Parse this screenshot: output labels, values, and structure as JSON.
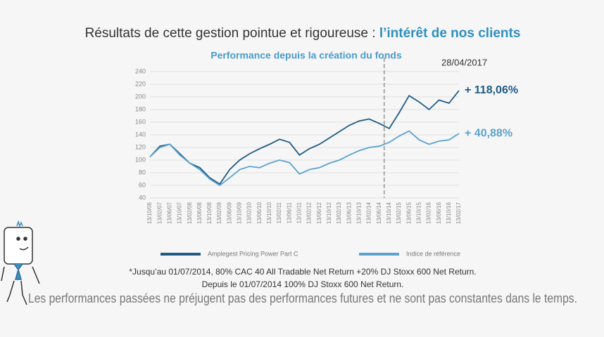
{
  "header": {
    "title": "Résultats de cette gestion pointue et rigoureuse : ",
    "title_highlight": "l’intérêt de nos clients"
  },
  "chart_data": {
    "type": "line",
    "title": "Performance depuis la création du fonds",
    "categories": [
      "13/10/06",
      "13/02/07",
      "13/06/07",
      "13/10/07",
      "13/02/08",
      "13/06/08",
      "13/10/08",
      "13/02/09",
      "13/06/09",
      "13/10/09",
      "13/02/10",
      "13/06/10",
      "13/10/10",
      "13/02/11",
      "13/06/11",
      "13/10/11",
      "13/02/12",
      "13/06/12",
      "13/10/12",
      "13/02/13",
      "13/06/13",
      "13/10/13",
      "13/02/14",
      "13/06/14",
      "13/10/14",
      "13/02/15",
      "13/06/15",
      "13/10/15",
      "13/02/16",
      "13/06/16",
      "13/10/16",
      "13/02/17"
    ],
    "series": [
      {
        "name": "Amplegest Pricing Power Part C",
        "color": "#1f5a85",
        "end_label": "+ 118,06%",
        "values": [
          105,
          122,
          125,
          110,
          95,
          88,
          72,
          62,
          85,
          100,
          110,
          118,
          125,
          133,
          128,
          108,
          118,
          125,
          135,
          145,
          155,
          162,
          165,
          158,
          150,
          175,
          202,
          192,
          180,
          195,
          190,
          210
        ]
      },
      {
        "name": "Indice de référence",
        "color": "#5ba3cf",
        "end_label": "+ 40,88%",
        "values": [
          105,
          120,
          125,
          108,
          95,
          85,
          70,
          60,
          72,
          85,
          90,
          88,
          95,
          100,
          96,
          78,
          85,
          88,
          95,
          100,
          108,
          115,
          120,
          122,
          128,
          138,
          146,
          132,
          125,
          130,
          132,
          142
        ]
      }
    ],
    "date_label": "28/04/2017",
    "ylim": [
      40,
      240
    ],
    "yticks": [
      40,
      60,
      80,
      100,
      120,
      140,
      160,
      180,
      200,
      220,
      240
    ],
    "grid": true
  },
  "footnotes": [
    "*Jusqu’au 01/07/2014, 80% CAC 40 All Tradable Net Return +20% DJ Stoxx 600 Net Return.",
    "Depuis le 01/07/2014 100% DJ Stoxx 600 Net Return."
  ],
  "disclaimer": "Les performances passées ne préjugent pas des performances futures et ne sont pas constantes dans le temps."
}
